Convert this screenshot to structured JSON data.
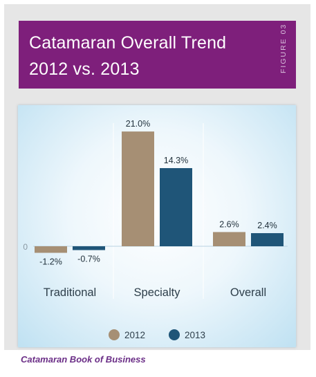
{
  "header": {
    "title_line1": "Catamaran Overall Trend",
    "title_line2": "2012 vs. 2013",
    "figure_label": "FIGURE 03"
  },
  "footer": {
    "source": "Catamaran Book of Business"
  },
  "colors": {
    "header_bg": "#7e1f7b",
    "series_2012": "#a68f74",
    "series_2013": "#1f5578",
    "source_text": "#6a2d86"
  },
  "chart_data": {
    "type": "bar",
    "categories": [
      "Traditional",
      "Specialty",
      "Overall"
    ],
    "series": [
      {
        "name": "2012",
        "values": [
          -1.2,
          21.0,
          2.6
        ],
        "labels": [
          "-1.2%",
          "21.0%",
          "2.6%"
        ],
        "color": "#a68f74"
      },
      {
        "name": "2013",
        "values": [
          -0.7,
          14.3,
          2.4
        ],
        "labels": [
          "-0.7%",
          "14.3%",
          "2.4%"
        ],
        "color": "#1f5578"
      }
    ],
    "zero_label": "0",
    "legend_position": "bottom-center",
    "grid": false
  }
}
